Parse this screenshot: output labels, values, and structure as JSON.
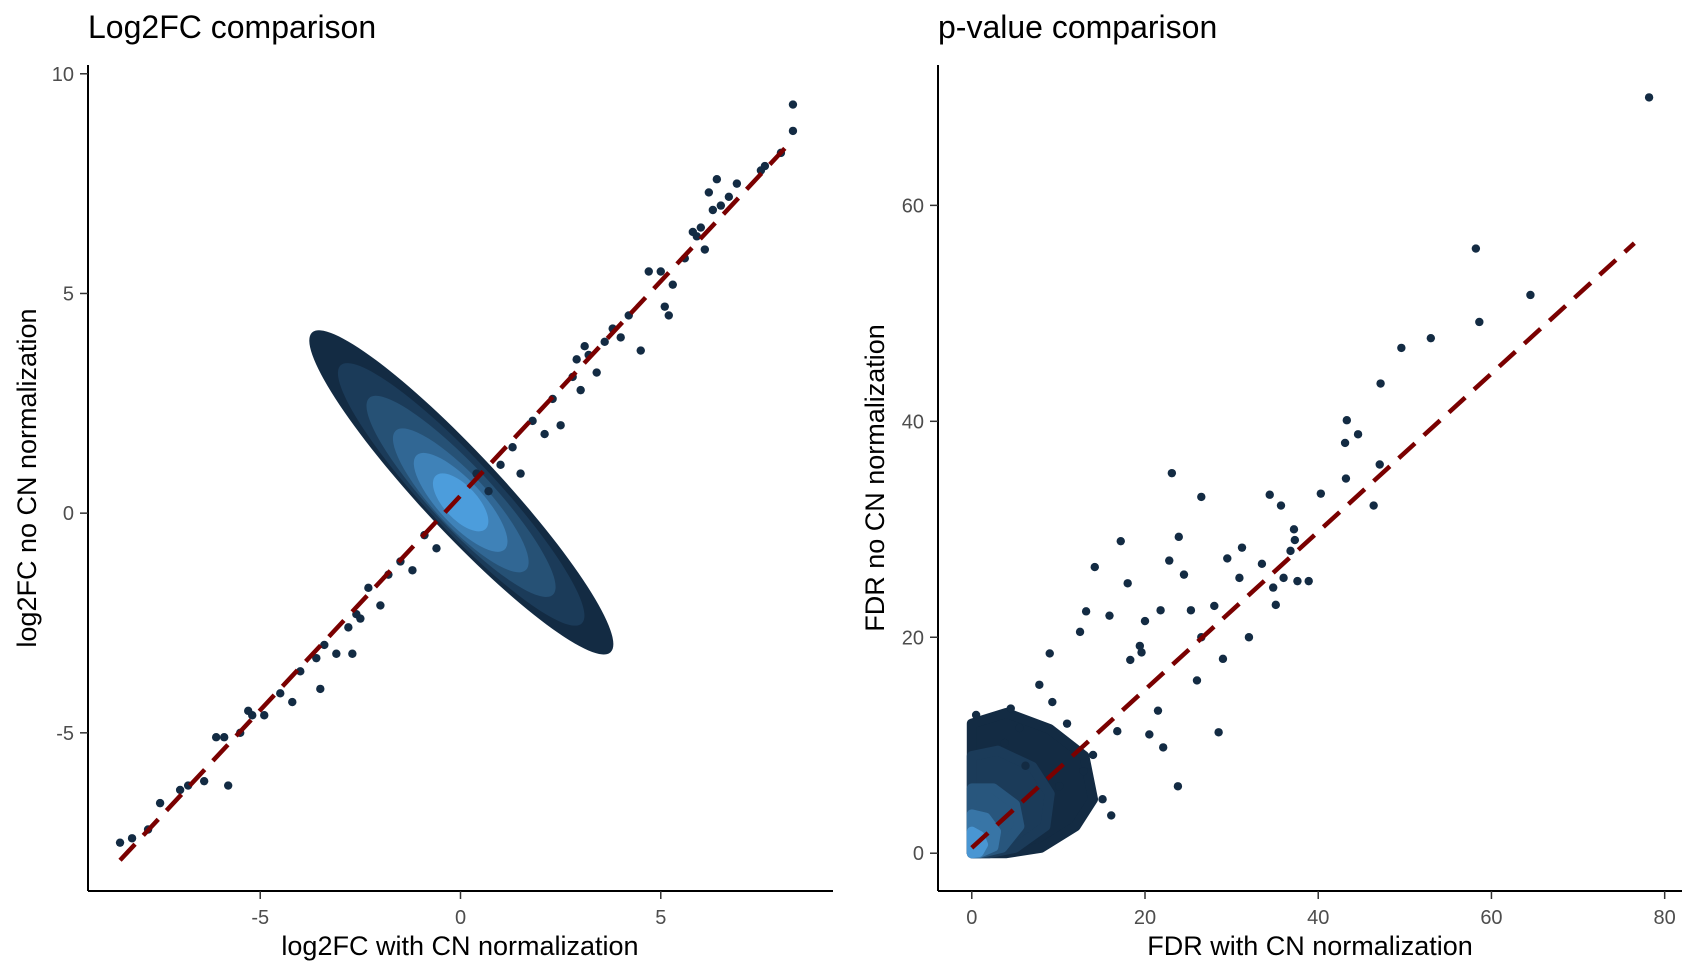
{
  "chart_data": [
    {
      "type": "scatter",
      "title": "Log2FC comparison",
      "xlabel": "log2FC with CN normalization",
      "ylabel": "log2FC no CN normalization",
      "xlim": [
        -9.3,
        9.3
      ],
      "ylim": [
        -8.6,
        10.2
      ],
      "xticks": [
        -5,
        0,
        5
      ],
      "yticks": [
        -5,
        0,
        5,
        10
      ],
      "grid": false,
      "colors": {
        "point": "#132b43",
        "dense": "#56b1f7",
        "ref_line": "#7a0000"
      },
      "ref_line": {
        "x": [
          -8.5,
          8.3
        ],
        "y": [
          -7.9,
          8.5
        ]
      },
      "points": [
        [
          -8.5,
          -7.5
        ],
        [
          -8.2,
          -7.4
        ],
        [
          -7.8,
          -7.2
        ],
        [
          -7.5,
          -6.6
        ],
        [
          -7.0,
          -6.3
        ],
        [
          -6.8,
          -6.2
        ],
        [
          -6.4,
          -6.1
        ],
        [
          -5.8,
          -6.2
        ],
        [
          -6.1,
          -5.1
        ],
        [
          -5.9,
          -5.1
        ],
        [
          -5.5,
          -5.0
        ],
        [
          -5.2,
          -4.6
        ],
        [
          -5.3,
          -4.5
        ],
        [
          -4.9,
          -4.6
        ],
        [
          -4.5,
          -4.1
        ],
        [
          -4.2,
          -4.3
        ],
        [
          -4.0,
          -3.6
        ],
        [
          -3.6,
          -3.3
        ],
        [
          -3.4,
          -3.0
        ],
        [
          -3.1,
          -3.2
        ],
        [
          -2.7,
          -3.2
        ],
        [
          -2.8,
          -2.6
        ],
        [
          -2.5,
          -2.4
        ],
        [
          -2.3,
          -1.7
        ],
        [
          -2.0,
          -2.1
        ],
        [
          -1.8,
          -1.4
        ],
        [
          -1.5,
          -1.1
        ],
        [
          -1.2,
          -1.3
        ],
        [
          -0.9,
          -0.5
        ],
        [
          -0.6,
          -0.8
        ],
        [
          0.4,
          0.9
        ],
        [
          0.7,
          0.5
        ],
        [
          1.0,
          1.1
        ],
        [
          1.3,
          1.5
        ],
        [
          1.5,
          0.9
        ],
        [
          1.8,
          2.1
        ],
        [
          2.1,
          1.8
        ],
        [
          2.3,
          2.6
        ],
        [
          2.5,
          2.0
        ],
        [
          2.8,
          3.1
        ],
        [
          3.0,
          2.8
        ],
        [
          3.2,
          3.6
        ],
        [
          3.4,
          3.2
        ],
        [
          3.6,
          3.9
        ],
        [
          3.8,
          4.2
        ],
        [
          4.0,
          4.0
        ],
        [
          4.2,
          4.5
        ],
        [
          4.5,
          3.7
        ],
        [
          4.7,
          5.5
        ],
        [
          5.0,
          5.5
        ],
        [
          5.1,
          4.7
        ],
        [
          5.2,
          4.5
        ],
        [
          5.3,
          5.2
        ],
        [
          5.6,
          5.8
        ],
        [
          5.9,
          6.3
        ],
        [
          6.1,
          6.0
        ],
        [
          6.2,
          7.3
        ],
        [
          6.4,
          7.6
        ],
        [
          6.5,
          7.0
        ],
        [
          6.7,
          7.2
        ],
        [
          6.9,
          7.5
        ],
        [
          6.0,
          6.5
        ],
        [
          5.8,
          6.4
        ],
        [
          6.3,
          6.9
        ],
        [
          7.5,
          7.8
        ],
        [
          7.6,
          7.9
        ],
        [
          8.0,
          8.2
        ],
        [
          8.3,
          8.7
        ],
        [
          8.3,
          9.3
        ],
        [
          -3.5,
          -4.0
        ],
        [
          -2.6,
          -2.3
        ],
        [
          3.1,
          3.8
        ],
        [
          2.9,
          3.5
        ]
      ],
      "dense_region": {
        "center": [
          0.0,
          0.0
        ],
        "note": "dense cluster along diagonal"
      }
    },
    {
      "type": "scatter",
      "title": "p-value comparison",
      "xlabel": "FDR with CN normalization",
      "ylabel": "FDR no CN normalization",
      "xlim": [
        -3.9,
        82
      ],
      "ylim": [
        -3.5,
        73
      ],
      "xticks": [
        0,
        20,
        40,
        60,
        80
      ],
      "yticks": [
        0,
        20,
        40,
        60
      ],
      "grid": false,
      "colors": {
        "point": "#132b43",
        "dense": "#56b1f7",
        "ref_line": "#7a0000"
      },
      "ref_line": {
        "x": [
          0,
          76.5
        ],
        "y": [
          0.5,
          56.5
        ]
      },
      "points": [
        [
          78.2,
          70.0
        ],
        [
          58.2,
          56.0
        ],
        [
          64.5,
          51.7
        ],
        [
          58.6,
          49.2
        ],
        [
          53.0,
          47.7
        ],
        [
          49.6,
          46.8
        ],
        [
          47.2,
          43.5
        ],
        [
          43.3,
          40.1
        ],
        [
          44.6,
          38.8
        ],
        [
          43.1,
          38.0
        ],
        [
          47.1,
          36.0
        ],
        [
          43.2,
          34.7
        ],
        [
          23.1,
          35.2
        ],
        [
          26.5,
          33.0
        ],
        [
          34.4,
          33.2
        ],
        [
          35.7,
          32.2
        ],
        [
          37.2,
          30.0
        ],
        [
          38.9,
          25.2
        ],
        [
          37.6,
          25.2
        ],
        [
          36.0,
          25.5
        ],
        [
          34.8,
          24.6
        ],
        [
          35.1,
          23.0
        ],
        [
          36.8,
          28.0
        ],
        [
          37.3,
          29.0
        ],
        [
          40.3,
          33.3
        ],
        [
          46.4,
          32.2
        ],
        [
          31.2,
          28.3
        ],
        [
          29.5,
          27.3
        ],
        [
          30.9,
          25.5
        ],
        [
          33.5,
          26.8
        ],
        [
          23.9,
          29.3
        ],
        [
          22.8,
          27.1
        ],
        [
          28.0,
          22.9
        ],
        [
          28.5,
          11.2
        ],
        [
          26.5,
          20.0
        ],
        [
          24.5,
          25.8
        ],
        [
          25.3,
          22.5
        ],
        [
          21.8,
          22.5
        ],
        [
          20.0,
          21.5
        ],
        [
          19.6,
          18.6
        ],
        [
          17.2,
          28.9
        ],
        [
          15.9,
          22.0
        ],
        [
          14.2,
          26.5
        ],
        [
          13.2,
          22.4
        ],
        [
          12.5,
          20.5
        ],
        [
          18.3,
          17.9
        ],
        [
          19.4,
          19.2
        ],
        [
          21.5,
          13.2
        ],
        [
          20.5,
          11.0
        ],
        [
          23.8,
          6.2
        ],
        [
          22.1,
          9.8
        ],
        [
          16.8,
          11.3
        ],
        [
          14.0,
          9.1
        ],
        [
          12.9,
          7.6
        ],
        [
          15.1,
          5.0
        ],
        [
          16.1,
          3.5
        ],
        [
          9.0,
          18.5
        ],
        [
          7.8,
          15.6
        ],
        [
          5.5,
          11.6
        ],
        [
          4.5,
          13.4
        ],
        [
          3.8,
          10.2
        ],
        [
          0.5,
          12.8
        ],
        [
          6.2,
          8.1
        ],
        [
          10.1,
          6.2
        ],
        [
          9.3,
          14.0
        ],
        [
          18.0,
          25.0
        ],
        [
          32.0,
          20.0
        ],
        [
          29.0,
          18.0
        ],
        [
          26.0,
          16.0
        ],
        [
          11.0,
          12.0
        ]
      ],
      "dense_region": {
        "center": [
          0.5,
          0.5
        ],
        "note": "dense cluster near origin"
      }
    }
  ]
}
